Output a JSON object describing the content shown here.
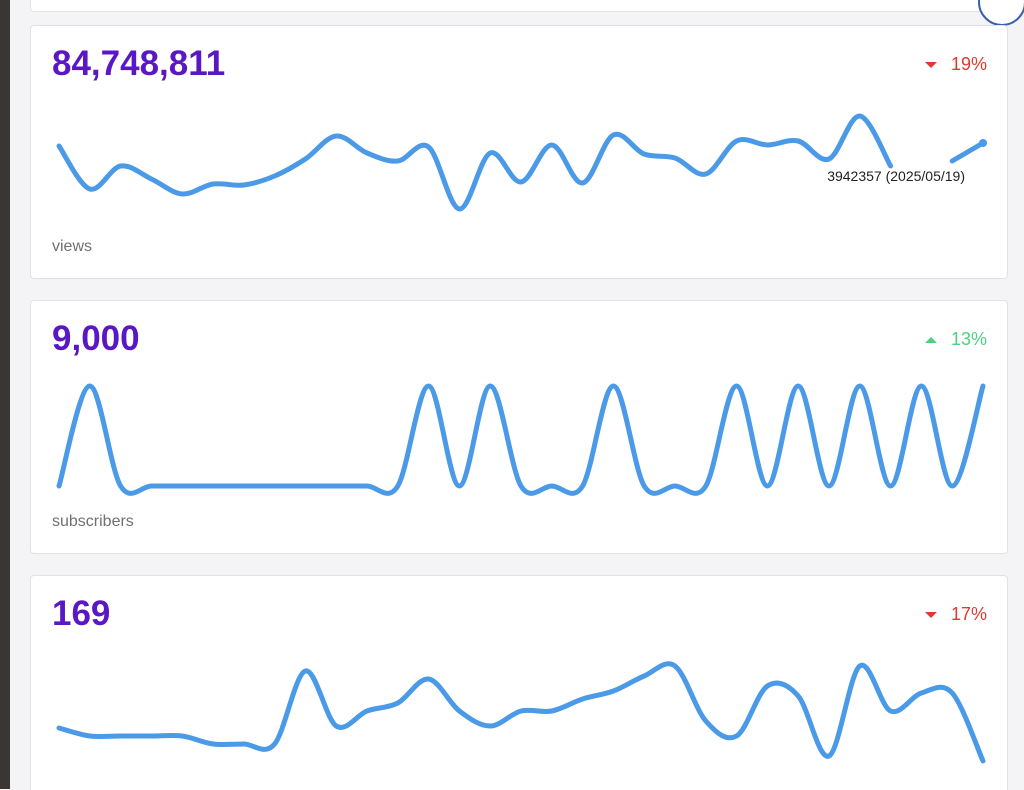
{
  "line_color": "#4a9ae8",
  "cards": [
    {
      "value": "84,748,811",
      "change": "19%",
      "trend": "down",
      "label": "views",
      "tooltip": "3942357 (2025/05/19)",
      "ylim": [
        0,
        100
      ],
      "series": [
        65,
        22,
        45,
        32,
        17,
        27,
        26,
        35,
        52,
        75,
        58,
        50,
        64,
        2,
        58,
        29,
        66,
        28,
        76,
        57,
        53,
        37,
        70,
        66,
        70,
        52,
        95,
        45,
        null,
        50,
        68
      ]
    },
    {
      "value": "9,000",
      "change": "13%",
      "trend": "up",
      "label": "subscribers",
      "ylim": [
        0,
        100
      ],
      "series": [
        0,
        100,
        0,
        0,
        0,
        0,
        0,
        0,
        0,
        0,
        0,
        0,
        100,
        0,
        100,
        0,
        0,
        0,
        100,
        0,
        0,
        0,
        100,
        0,
        100,
        0,
        100,
        0,
        100,
        0,
        100
      ]
    },
    {
      "value": "169",
      "change": "17%",
      "trend": "down",
      "ylim": [
        0,
        100
      ],
      "series": [
        33,
        25,
        25,
        25,
        25,
        17,
        17,
        17,
        90,
        35,
        50,
        58,
        82,
        50,
        35,
        50,
        50,
        62,
        70,
        85,
        95,
        40,
        25,
        75,
        65,
        5,
        95,
        50,
        68,
        68,
        0
      ]
    }
  ]
}
